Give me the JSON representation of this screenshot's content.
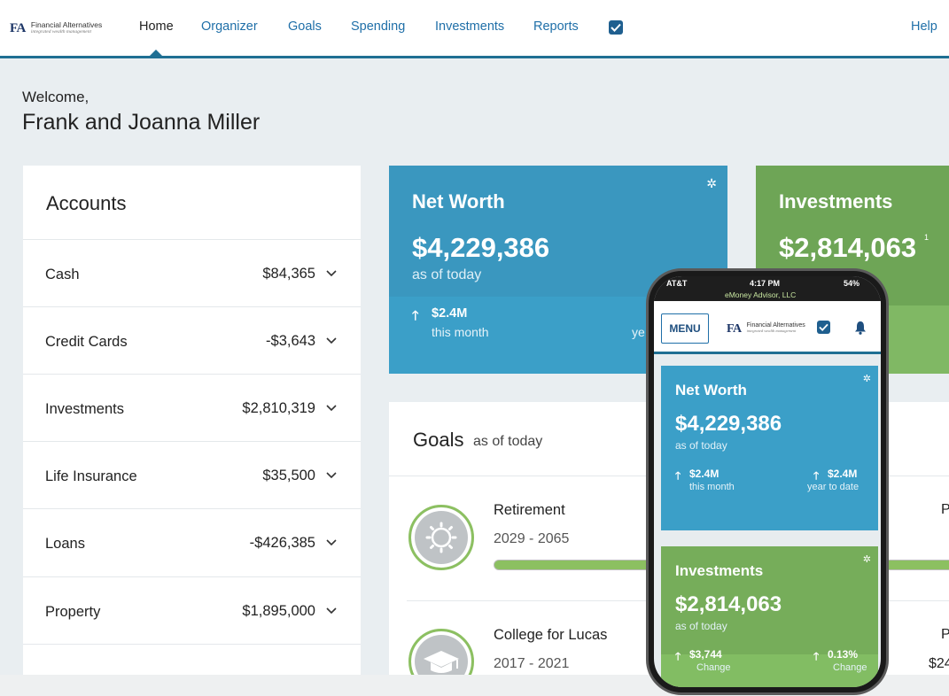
{
  "brand": {
    "initials": "FA",
    "name": "Financial Alternatives",
    "tagline": "integrated wealth management"
  },
  "nav": {
    "items": [
      "Home",
      "Organizer",
      "Goals",
      "Spending",
      "Investments",
      "Reports"
    ],
    "active": "Home",
    "help": "Help"
  },
  "welcome": {
    "greeting": "Welcome,",
    "name": "Frank and Joanna Miller"
  },
  "accounts": {
    "title": "Accounts",
    "rows": [
      {
        "label": "Cash",
        "value": "$84,365"
      },
      {
        "label": "Credit Cards",
        "value": "-$3,643"
      },
      {
        "label": "Investments",
        "value": "$2,810,319"
      },
      {
        "label": "Life Insurance",
        "value": "$35,500"
      },
      {
        "label": "Loans",
        "value": "-$426,385"
      },
      {
        "label": "Property",
        "value": "$1,895,000"
      }
    ]
  },
  "networth": {
    "title": "Net Worth",
    "amount": "$4,229,386",
    "sub": "as of today",
    "stat1_value": "$2.4M",
    "stat1_label": "this month",
    "stat2_label_partial": "ye"
  },
  "investments": {
    "title": "Investments",
    "amount": "$2,814,063",
    "footnote": "1"
  },
  "goals": {
    "title": "Goals",
    "sub": "as of today",
    "items": [
      {
        "name": "Retirement",
        "years": "2029 - 2065",
        "right": "P"
      },
      {
        "name": "College for Lucas",
        "years": "2017 - 2021",
        "right": "P",
        "right2": "$24"
      }
    ]
  },
  "phone": {
    "carrier": "AT&T",
    "time": "4:17 PM",
    "battery": "54%",
    "advisor": "eMoney Advisor, LLC",
    "menu": "MENU",
    "networth": {
      "title": "Net Worth",
      "amount": "$4,229,386",
      "sub": "as of today",
      "stat1_value": "$2.4M",
      "stat1_label": "this month",
      "stat2_value": "$2.4M",
      "stat2_label": "year to date"
    },
    "investments": {
      "title": "Investments",
      "amount": "$2,814,063",
      "sub": "as of today",
      "stat1_value": "$3,744",
      "stat1_label": "Change",
      "stat2_value": "0.13%",
      "stat2_label": "Change"
    }
  }
}
